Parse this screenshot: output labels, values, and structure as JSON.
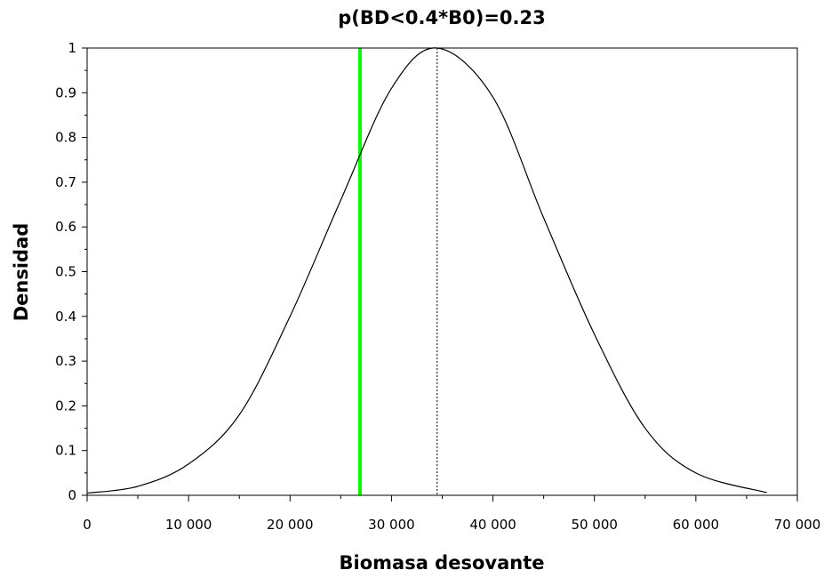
{
  "chart_data": {
    "type": "line",
    "title": "p(BD<0.4*B0)=0.23",
    "xlabel": "Biomasa desovante",
    "ylabel": "Densidad",
    "xlim": [
      0,
      70000
    ],
    "ylim": [
      0,
      1
    ],
    "x_ticks": [
      0,
      10000,
      20000,
      30000,
      40000,
      50000,
      60000,
      70000
    ],
    "x_tick_labels": [
      "0",
      "10 000",
      "20 000",
      "30 000",
      "40 000",
      "50 000",
      "60 000",
      "70 000"
    ],
    "y_ticks": [
      0,
      0.1,
      0.2,
      0.3,
      0.4,
      0.5,
      0.6,
      0.7,
      0.8,
      0.9,
      1
    ],
    "y_tick_labels": [
      "0",
      "0.1",
      "0.2",
      "0.3",
      "0.4",
      "0.5",
      "0.6",
      "0.7",
      "0.8",
      "0.9",
      "1"
    ],
    "grid": false,
    "series": [
      {
        "color": "#000000",
        "x": [
          0,
          5000,
          10000,
          15000,
          20000,
          25000,
          30000,
          34500,
          40000,
          45000,
          50000,
          55000,
          60000,
          67000
        ],
        "y": [
          0.005,
          0.02,
          0.07,
          0.18,
          0.4,
          0.66,
          0.91,
          1.0,
          0.89,
          0.62,
          0.36,
          0.15,
          0.05,
          0.006
        ]
      }
    ],
    "reference_lines": [
      {
        "x": 26900,
        "color": "#00ff00",
        "style": "solid"
      },
      {
        "x": 34500,
        "color": "#000000",
        "style": "dotted"
      }
    ]
  }
}
